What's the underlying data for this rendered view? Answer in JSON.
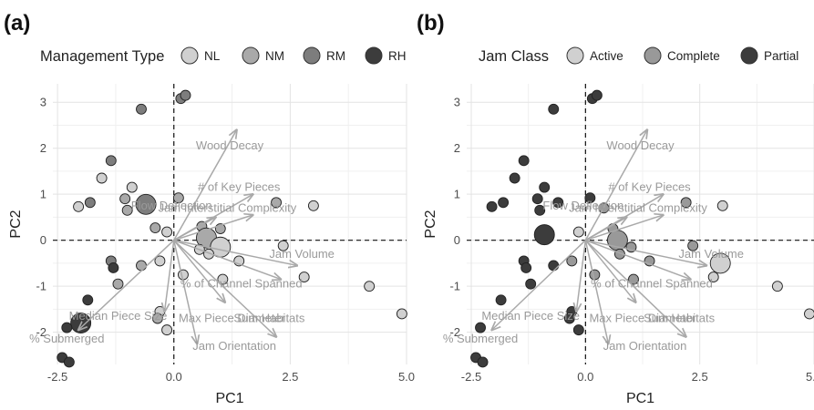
{
  "chart_data": [
    {
      "panel_label": "(a)",
      "type": "scatter",
      "legend_title": "Management Type",
      "legend_position": "top",
      "legend_items": [
        {
          "name": "NL",
          "color": "#d0d0d0"
        },
        {
          "name": "NM",
          "color": "#a9a9a9"
        },
        {
          "name": "RM",
          "color": "#7d7d7d"
        },
        {
          "name": "RH",
          "color": "#3c3c3c"
        }
      ],
      "xlabel": "PC1",
      "ylabel": "PC2",
      "xlim": [
        -2.6,
        5.0
      ],
      "ylim": [
        -2.7,
        3.4
      ],
      "xticks": [
        -2.5,
        0.0,
        2.5,
        5.0
      ],
      "xtick_labels": [
        "-2.5",
        "0.0",
        "2.5",
        "5.0"
      ],
      "yticks": [
        -2,
        -1,
        0,
        1,
        2,
        3
      ],
      "ytick_labels": [
        "-2",
        "-1",
        "0",
        "1",
        "2",
        "3"
      ],
      "grid": true,
      "points": [
        {
          "x": 0.15,
          "y": 3.08,
          "group": "RM"
        },
        {
          "x": 0.25,
          "y": 3.15,
          "group": "RM"
        },
        {
          "x": -0.7,
          "y": 2.85,
          "group": "RM"
        },
        {
          "x": -1.35,
          "y": 1.73,
          "group": "RM"
        },
        {
          "x": -1.55,
          "y": 1.35,
          "group": "NL"
        },
        {
          "x": -0.9,
          "y": 1.15,
          "group": "NL"
        },
        {
          "x": -2.05,
          "y": 0.73,
          "group": "NL"
        },
        {
          "x": -1.8,
          "y": 0.82,
          "group": "RM"
        },
        {
          "x": -1.05,
          "y": 0.9,
          "group": "NM"
        },
        {
          "x": -1.0,
          "y": 0.65,
          "group": "NM"
        },
        {
          "x": -0.6,
          "y": 0.78,
          "group": "RM",
          "size": "large"
        },
        {
          "x": 0.1,
          "y": 0.92,
          "group": "NM"
        },
        {
          "x": -0.4,
          "y": 0.27,
          "group": "NM"
        },
        {
          "x": -0.15,
          "y": 0.18,
          "group": "NL"
        },
        {
          "x": 0.6,
          "y": 0.3,
          "group": "NM"
        },
        {
          "x": 1.0,
          "y": 0.25,
          "group": "NM"
        },
        {
          "x": 2.2,
          "y": 0.82,
          "group": "NM"
        },
        {
          "x": 3.0,
          "y": 0.75,
          "group": "NL"
        },
        {
          "x": 0.7,
          "y": 0.05,
          "group": "NM",
          "size": "large"
        },
        {
          "x": 1.0,
          "y": -0.15,
          "group": "NL",
          "size": "large"
        },
        {
          "x": 0.75,
          "y": -0.3,
          "group": "NL"
        },
        {
          "x": 0.55,
          "y": -0.2,
          "group": "NL"
        },
        {
          "x": 2.35,
          "y": -0.12,
          "group": "NL"
        },
        {
          "x": 1.4,
          "y": -0.45,
          "group": "NL"
        },
        {
          "x": 2.8,
          "y": -0.8,
          "group": "NL"
        },
        {
          "x": 1.05,
          "y": -0.85,
          "group": "NL"
        },
        {
          "x": 0.2,
          "y": -0.75,
          "group": "NL"
        },
        {
          "x": -0.3,
          "y": -0.45,
          "group": "NL"
        },
        {
          "x": -0.7,
          "y": -0.55,
          "group": "NM"
        },
        {
          "x": -1.35,
          "y": -0.45,
          "group": "RM"
        },
        {
          "x": -1.3,
          "y": -0.6,
          "group": "RH"
        },
        {
          "x": -1.2,
          "y": -0.95,
          "group": "NM"
        },
        {
          "x": 4.2,
          "y": -1.0,
          "group": "NL"
        },
        {
          "x": 4.9,
          "y": -1.6,
          "group": "NL"
        },
        {
          "x": -1.85,
          "y": -1.3,
          "group": "RH"
        },
        {
          "x": -0.3,
          "y": -1.55,
          "group": "NL"
        },
        {
          "x": -0.35,
          "y": -1.7,
          "group": "NM"
        },
        {
          "x": -0.15,
          "y": -1.95,
          "group": "NL"
        },
        {
          "x": -2.0,
          "y": -1.8,
          "group": "RH",
          "size": "large"
        },
        {
          "x": -2.3,
          "y": -1.9,
          "group": "RH"
        },
        {
          "x": -2.4,
          "y": -2.55,
          "group": "RH"
        },
        {
          "x": -2.25,
          "y": -2.65,
          "group": "RH"
        }
      ],
      "vectors": [
        {
          "label": "Wood Decay",
          "x": 1.35,
          "y": 2.4
        },
        {
          "label": "# of Key Pieces",
          "x": 1.7,
          "y": 1.0
        },
        {
          "label": "Flow Deflection",
          "x": 0.9,
          "y": 0.5
        },
        {
          "label": "Jam Interstitial Complexity",
          "x": 1.7,
          "y": 0.55
        },
        {
          "label": "Jam Volume",
          "x": 2.65,
          "y": -0.55
        },
        {
          "label": "% of Channel Spanned",
          "x": 2.3,
          "y": -0.85
        },
        {
          "label": "Max Piece Diameter",
          "x": 1.1,
          "y": -1.35
        },
        {
          "label": "Sum Habitats",
          "x": 2.2,
          "y": -2.1
        },
        {
          "label": "Jam Orientation",
          "x": 0.5,
          "y": -2.25
        },
        {
          "label": "Median Piece Size",
          "x": -0.2,
          "y": -1.55
        },
        {
          "label": "% Submerged",
          "x": -2.05,
          "y": -1.95
        }
      ]
    },
    {
      "panel_label": "(b)",
      "type": "scatter",
      "legend_title": "Jam Class",
      "legend_position": "top",
      "legend_items": [
        {
          "name": "Active",
          "color": "#d0d0d0"
        },
        {
          "name": "Complete",
          "color": "#999999"
        },
        {
          "name": "Partial",
          "color": "#3c3c3c"
        }
      ],
      "xlabel": "PC1",
      "ylabel": "PC2",
      "xlim": [
        -2.6,
        5.0
      ],
      "ylim": [
        -2.7,
        3.4
      ],
      "xticks": [
        -2.5,
        0.0,
        2.5,
        5.0
      ],
      "xtick_labels": [
        "-2.5",
        "0.0",
        "2.5",
        "5.0"
      ],
      "yticks": [
        -2,
        -1,
        0,
        1,
        2,
        3
      ],
      "ytick_labels": [
        "-2",
        "-1",
        "0",
        "1",
        "2",
        "3"
      ],
      "grid": true,
      "points": [
        {
          "x": 0.15,
          "y": 3.08,
          "group": "Partial"
        },
        {
          "x": 0.25,
          "y": 3.15,
          "group": "Partial"
        },
        {
          "x": -0.7,
          "y": 2.85,
          "group": "Partial"
        },
        {
          "x": -1.35,
          "y": 1.73,
          "group": "Partial"
        },
        {
          "x": -1.55,
          "y": 1.35,
          "group": "Partial"
        },
        {
          "x": -0.9,
          "y": 1.15,
          "group": "Partial"
        },
        {
          "x": -2.05,
          "y": 0.73,
          "group": "Partial"
        },
        {
          "x": -1.8,
          "y": 0.82,
          "group": "Partial"
        },
        {
          "x": -1.05,
          "y": 0.9,
          "group": "Partial"
        },
        {
          "x": -1.0,
          "y": 0.65,
          "group": "Partial"
        },
        {
          "x": -0.6,
          "y": 0.82,
          "group": "Partial"
        },
        {
          "x": 0.1,
          "y": 0.92,
          "group": "Partial"
        },
        {
          "x": -0.9,
          "y": 0.12,
          "group": "Partial",
          "size": "large"
        },
        {
          "x": -0.15,
          "y": 0.18,
          "group": "Active"
        },
        {
          "x": 0.4,
          "y": 0.7,
          "group": "Complete"
        },
        {
          "x": 0.6,
          "y": 0.25,
          "group": "Complete"
        },
        {
          "x": 2.2,
          "y": 0.82,
          "group": "Complete"
        },
        {
          "x": 3.0,
          "y": 0.75,
          "group": "Active"
        },
        {
          "x": 0.7,
          "y": 0.0,
          "group": "Complete",
          "size": "large"
        },
        {
          "x": 1.0,
          "y": -0.15,
          "group": "Complete"
        },
        {
          "x": 0.75,
          "y": -0.3,
          "group": "Complete"
        },
        {
          "x": 2.35,
          "y": -0.12,
          "group": "Complete"
        },
        {
          "x": 1.4,
          "y": -0.45,
          "group": "Complete"
        },
        {
          "x": 2.95,
          "y": -0.5,
          "group": "Active",
          "size": "large"
        },
        {
          "x": 2.8,
          "y": -0.8,
          "group": "Active"
        },
        {
          "x": 1.05,
          "y": -0.85,
          "group": "Complete"
        },
        {
          "x": 0.2,
          "y": -0.75,
          "group": "Complete"
        },
        {
          "x": -0.3,
          "y": -0.45,
          "group": "Complete"
        },
        {
          "x": -0.7,
          "y": -0.55,
          "group": "Partial"
        },
        {
          "x": -1.35,
          "y": -0.45,
          "group": "Partial"
        },
        {
          "x": -1.3,
          "y": -0.6,
          "group": "Partial"
        },
        {
          "x": -1.2,
          "y": -0.95,
          "group": "Partial"
        },
        {
          "x": 4.2,
          "y": -1.0,
          "group": "Active"
        },
        {
          "x": 4.9,
          "y": -1.6,
          "group": "Active"
        },
        {
          "x": -1.85,
          "y": -1.3,
          "group": "Partial"
        },
        {
          "x": -0.3,
          "y": -1.55,
          "group": "Partial"
        },
        {
          "x": -0.35,
          "y": -1.7,
          "group": "Partial"
        },
        {
          "x": -0.15,
          "y": -1.95,
          "group": "Partial"
        },
        {
          "x": -2.3,
          "y": -1.9,
          "group": "Partial"
        },
        {
          "x": -2.4,
          "y": -2.55,
          "group": "Partial"
        },
        {
          "x": -2.25,
          "y": -2.65,
          "group": "Partial"
        }
      ],
      "vectors": [
        {
          "label": "Wood Decay",
          "x": 1.35,
          "y": 2.4
        },
        {
          "label": "# of Key Pieces",
          "x": 1.7,
          "y": 1.0
        },
        {
          "label": "Flow Deflection",
          "x": 0.9,
          "y": 0.5
        },
        {
          "label": "Jam Interstitial Complexity",
          "x": 1.7,
          "y": 0.55
        },
        {
          "label": "Jam Volume",
          "x": 2.65,
          "y": -0.55
        },
        {
          "label": "% of Channel Spanned",
          "x": 2.3,
          "y": -0.85
        },
        {
          "label": "Max Piece Diameter",
          "x": 1.1,
          "y": -1.35
        },
        {
          "label": "Sum Habitats",
          "x": 2.2,
          "y": -2.1
        },
        {
          "label": "Jam Orientation",
          "x": 0.5,
          "y": -2.25
        },
        {
          "label": "Median Piece Size",
          "x": -0.2,
          "y": -1.55
        },
        {
          "label": "% Submerged",
          "x": -2.05,
          "y": -1.95
        }
      ]
    }
  ]
}
